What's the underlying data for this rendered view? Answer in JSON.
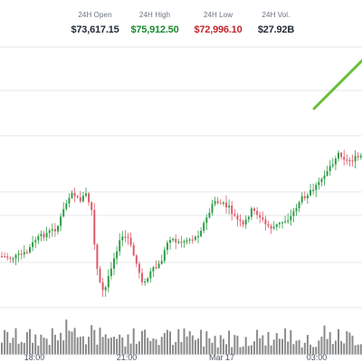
{
  "stats": [
    {
      "label": "24H Open",
      "value": "$73,617.15",
      "color": "#1f2937"
    },
    {
      "label": "24H High",
      "value": "$75,912.50",
      "color": "#1a8a2e"
    },
    {
      "label": "24H Low",
      "value": "$72,996.10",
      "color": "#c0262d"
    },
    {
      "label": "24H Vol.",
      "value": "$27.92B",
      "color": "#1f2937"
    }
  ],
  "colors": {
    "up": "#2e9e46",
    "down": "#e05a6a",
    "volume": "#8a8a8a",
    "trend_line": "#6abf3a",
    "grid": "#e5e7eb"
  },
  "chart_data": {
    "type": "candlestick",
    "x_tick_labels": [
      "18:00",
      "21:00",
      "Mar 17",
      "03:00"
    ],
    "grid": true,
    "legend": "none"
  }
}
